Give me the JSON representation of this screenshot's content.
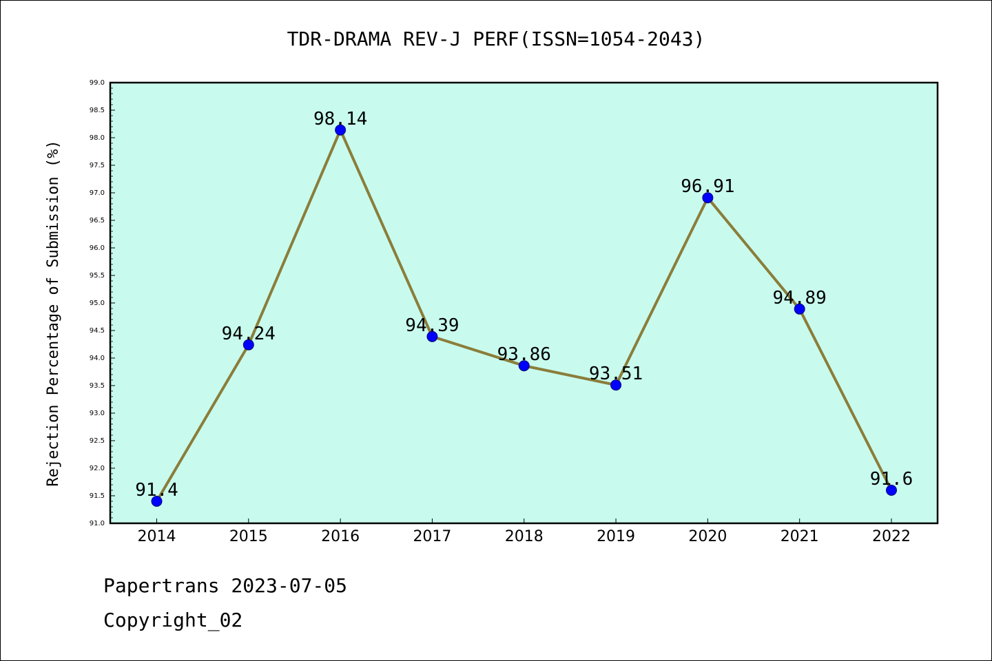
{
  "chart_data": {
    "type": "line",
    "title": "TDR-DRAMA REV-J PERF(ISSN=1054-2043)",
    "xlabel": "",
    "ylabel": "Rejection Percentage of Submission (%)",
    "categories": [
      "2014",
      "2015",
      "2016",
      "2017",
      "2018",
      "2019",
      "2020",
      "2021",
      "2022"
    ],
    "series": [
      {
        "values": [
          91.4,
          94.24,
          98.14,
          94.39,
          93.86,
          93.51,
          96.91,
          94.89,
          91.6
        ],
        "data_labels": [
          "91.4",
          "94.24",
          "98.14",
          "94.39",
          "93.86",
          "93.51",
          "96.91",
          "94.89",
          "91.6"
        ]
      }
    ],
    "ylim": [
      91.0,
      99.0
    ],
    "ytick_labels": [
      "91.0",
      "91.5",
      "92.0",
      "92.5",
      "93.0",
      "93.5",
      "94.0",
      "94.5",
      "95.0",
      "95.5",
      "96.0",
      "96.5",
      "97.0",
      "97.5",
      "98.0",
      "98.5",
      "99.0"
    ],
    "grid": false,
    "legend": "none",
    "colors": {
      "plot_background": "#c8fbee",
      "line": "#8b7d3a",
      "marker": "#0000ff",
      "marker_edge": "#0a0a6e"
    }
  },
  "footer": {
    "line1": "Papertrans 2023-07-05",
    "line2": "Copyright_02"
  }
}
